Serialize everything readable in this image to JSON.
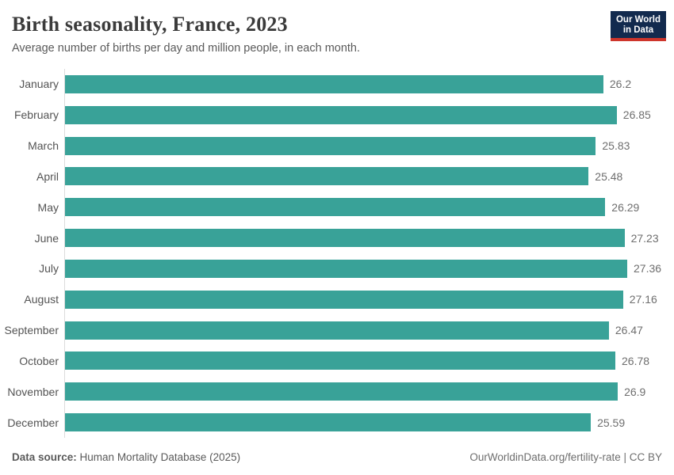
{
  "header": {
    "title": "Birth seasonality, France, 2023",
    "subtitle": "Average number of births per day and million people, in each month.",
    "logo": {
      "line1": "Our World",
      "line2": "in Data",
      "bg_color": "#122a4e",
      "accent_color": "#ce352b"
    }
  },
  "chart_data": {
    "type": "bar",
    "orientation": "horizontal",
    "title": "Birth seasonality, France, 2023",
    "xlabel": "",
    "ylabel": "",
    "categories": [
      "January",
      "February",
      "March",
      "April",
      "May",
      "June",
      "July",
      "August",
      "September",
      "October",
      "November",
      "December"
    ],
    "values": [
      26.2,
      26.85,
      25.83,
      25.48,
      26.29,
      27.23,
      27.36,
      27.16,
      26.47,
      26.78,
      26.9,
      25.59
    ],
    "xlim": [
      0,
      27.36
    ],
    "bar_color": "#39a298",
    "grid": false,
    "legend": false,
    "value_labels_shown": true
  },
  "footer": {
    "source_label": "Data source:",
    "source_value": "Human Mortality Database (2025)",
    "attribution": "OurWorldinData.org/fertility-rate | CC BY"
  }
}
